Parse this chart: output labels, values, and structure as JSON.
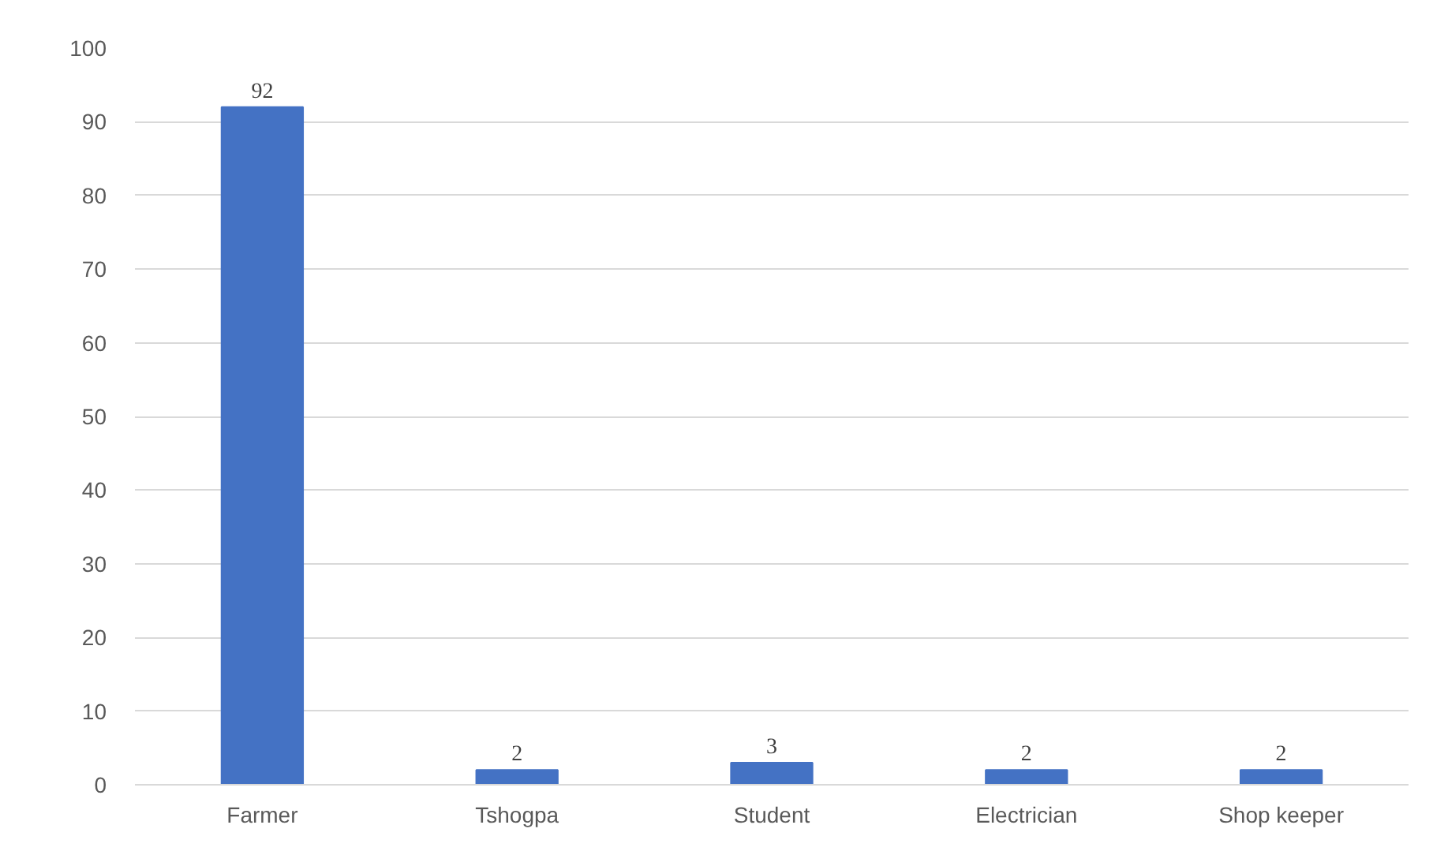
{
  "chart_data": {
    "type": "bar",
    "categories": [
      "Farmer",
      "Tshogpa",
      "Student",
      "Electrician",
      "Shop keeper"
    ],
    "values": [
      92,
      2,
      3,
      2,
      2
    ],
    "color": "#4472c4",
    "ylim": [
      0,
      100
    ],
    "yticks": [
      0,
      10,
      20,
      30,
      40,
      50,
      60,
      70,
      80,
      90,
      100
    ],
    "grid": "y",
    "data_labels": true
  }
}
